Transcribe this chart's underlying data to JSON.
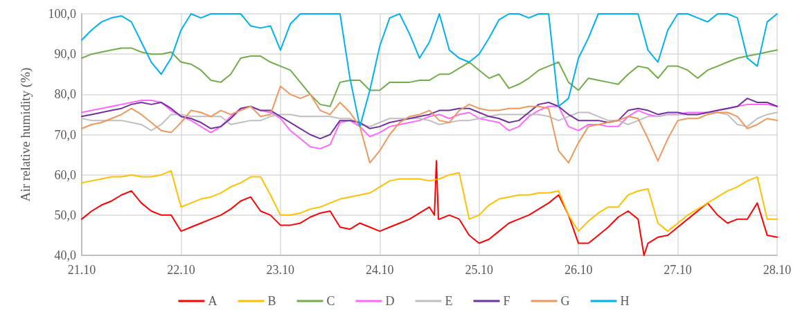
{
  "chart_data": {
    "type": "line",
    "ylabel": "Air relative humidity (%)",
    "xlim": [
      "--10-21",
      "--10-28"
    ],
    "xticks": [
      {
        "value": "--10-21",
        "label": "21.10"
      },
      {
        "value": "--10-22",
        "label": "22.10"
      },
      {
        "value": "--10-23",
        "label": "23.10"
      },
      {
        "value": "--10-24",
        "label": "24.10"
      },
      {
        "value": "--10-25",
        "label": "25.10"
      },
      {
        "value": "--10-26",
        "label": "26.10"
      },
      {
        "value": "--10-27",
        "label": "27.10"
      },
      {
        "value": "--10-28",
        "label": "28.10"
      }
    ],
    "ylim": [
      40,
      100
    ],
    "yticks": [
      {
        "value": 40,
        "label": "40,0"
      },
      {
        "value": 50,
        "label": "50,0"
      },
      {
        "value": 60,
        "label": "60,0"
      },
      {
        "value": 70,
        "label": "70,0"
      },
      {
        "value": 80,
        "label": "80,0"
      },
      {
        "value": 90,
        "label": "90,0"
      },
      {
        "value": 100,
        "label": "100,0"
      }
    ],
    "grid": true,
    "legend": "bottom",
    "marker": "none",
    "line_style": "solid",
    "x": [
      "--10-21T00:00",
      "--10-21T02:24",
      "--10-21T04:48",
      "--10-21T07:12",
      "--10-21T09:36",
      "--10-21T12:00",
      "--10-21T14:24",
      "--10-21T16:48",
      "--10-21T19:12",
      "--10-21T21:36",
      "--10-22T00:00",
      "--10-22T02:24",
      "--10-22T04:48",
      "--10-22T07:12",
      "--10-22T09:36",
      "--10-22T12:00",
      "--10-22T14:24",
      "--10-22T16:48",
      "--10-22T19:12",
      "--10-22T21:36",
      "--10-23T00:00",
      "--10-23T02:24",
      "--10-23T04:48",
      "--10-23T07:12",
      "--10-23T09:36",
      "--10-23T12:00",
      "--10-23T14:24",
      "--10-23T16:48",
      "--10-23T19:12",
      "--10-23T21:36",
      "--10-24T00:00",
      "--10-24T02:24",
      "--10-24T04:48",
      "--10-24T07:12",
      "--10-24T09:36",
      "--10-24T12:00",
      "--10-24T14:24",
      "--10-24T16:48",
      "--10-24T19:12",
      "--10-24T21:36",
      "--10-25T00:00",
      "--10-25T02:24",
      "--10-25T04:48",
      "--10-25T07:12",
      "--10-25T09:36",
      "--10-25T12:00",
      "--10-25T14:24",
      "--10-25T16:48",
      "--10-25T19:12",
      "--10-25T21:36",
      "--10-26T00:00",
      "--10-26T02:24",
      "--10-26T04:48",
      "--10-26T07:12",
      "--10-26T09:36",
      "--10-26T12:00",
      "--10-26T14:24",
      "--10-26T16:48",
      "--10-26T19:12",
      "--10-26T21:36",
      "--10-27T00:00",
      "--10-27T02:24",
      "--10-27T04:48",
      "--10-27T07:12",
      "--10-27T09:36",
      "--10-27T12:00",
      "--10-27T14:24",
      "--10-27T16:48",
      "--10-27T19:12",
      "--10-27T21:36",
      "--10-28T00:00"
    ],
    "series": [
      {
        "name": "A",
        "color": "#ff0000",
        "x": [
          "--10-21T00:00",
          "--10-21T02:24",
          "--10-21T04:48",
          "--10-21T07:12",
          "--10-21T09:36",
          "--10-21T12:00",
          "--10-21T14:24",
          "--10-21T16:48",
          "--10-21T19:12",
          "--10-21T21:36",
          "--10-22T00:00",
          "--10-22T02:24",
          "--10-22T04:48",
          "--10-22T07:12",
          "--10-22T09:36",
          "--10-22T12:00",
          "--10-22T14:24",
          "--10-22T16:48",
          "--10-22T19:12",
          "--10-22T21:36",
          "--10-23T00:00",
          "--10-23T02:24",
          "--10-23T04:48",
          "--10-23T07:12",
          "--10-23T09:36",
          "--10-23T12:00",
          "--10-23T14:24",
          "--10-23T16:48",
          "--10-23T19:12",
          "--10-23T21:36",
          "--10-24T00:00",
          "--10-24T02:24",
          "--10-24T04:48",
          "--10-24T07:12",
          "--10-24T09:36",
          "--10-24T12:00",
          "--10-24T13:12",
          "--10-24T13:41",
          "--10-24T14:10",
          "--10-24T14:24",
          "--10-24T16:48",
          "--10-24T19:12",
          "--10-24T21:36",
          "--10-25T00:00",
          "--10-25T02:24",
          "--10-25T04:48",
          "--10-25T07:12",
          "--10-25T09:36",
          "--10-25T12:00",
          "--10-25T14:24",
          "--10-25T16:48",
          "--10-25T19:12",
          "--10-25T21:36",
          "--10-26T00:00",
          "--10-26T02:24",
          "--10-26T04:48",
          "--10-26T07:12",
          "--10-26T09:36",
          "--10-26T12:00",
          "--10-26T14:24",
          "--10-26T15:50",
          "--10-26T16:48",
          "--10-26T19:12",
          "--10-26T21:36",
          "--10-27T00:00",
          "--10-27T02:24",
          "--10-27T04:48",
          "--10-27T07:12",
          "--10-27T09:36",
          "--10-27T12:00",
          "--10-27T14:24",
          "--10-27T16:48",
          "--10-27T19:12",
          "--10-27T21:36",
          "--10-28T00:00"
        ],
        "values": [
          49,
          51,
          52.5,
          53.5,
          55,
          56,
          53,
          51,
          50,
          50,
          46,
          47,
          48,
          49,
          50,
          51.5,
          53.5,
          54.5,
          51,
          50,
          47.5,
          47.5,
          48,
          49.5,
          50.5,
          51,
          47,
          46.5,
          48,
          47,
          46,
          47,
          48,
          49,
          50.5,
          52,
          50,
          63.5,
          49,
          49,
          50,
          49,
          45,
          43,
          44,
          46,
          48,
          49,
          50,
          51.5,
          53,
          55,
          50,
          43,
          43,
          45,
          47,
          49.5,
          51,
          49,
          40,
          43,
          44.5,
          45,
          47,
          49,
          51,
          53,
          50,
          48,
          49,
          49,
          53,
          45,
          44.5
        ]
      },
      {
        "name": "B",
        "color": "#ffc000",
        "values": [
          58,
          58.5,
          59,
          59.5,
          59.5,
          60,
          59.5,
          59.5,
          60,
          61,
          52,
          53,
          54,
          54.5,
          55.5,
          57,
          58,
          59.5,
          59.5,
          55,
          50,
          50,
          50.5,
          51.5,
          52,
          53,
          54,
          54.5,
          55,
          55.5,
          57,
          58.5,
          59,
          59,
          59,
          58.5,
          59,
          60,
          60.5,
          49,
          50,
          52.5,
          54,
          54.5,
          55,
          55,
          55.5,
          55.5,
          56,
          50,
          46,
          48.5,
          50.5,
          52,
          52,
          55,
          56,
          56.5,
          48,
          46,
          48,
          50,
          51.5,
          53,
          54.5,
          56,
          57,
          58.5,
          59.5,
          49,
          49
        ]
      },
      {
        "name": "C",
        "color": "#70ad47",
        "values": [
          89,
          90,
          90.5,
          91,
          91.5,
          91.5,
          90.5,
          90,
          90,
          90.5,
          88,
          87.5,
          86,
          83.5,
          83,
          85,
          89,
          89.5,
          89.5,
          88,
          87,
          86,
          83,
          80,
          77.5,
          77,
          83,
          83.5,
          83.5,
          81,
          81,
          83,
          83,
          83,
          83.5,
          83.5,
          85,
          85,
          86.5,
          88,
          86,
          84,
          85,
          81.5,
          82.5,
          84,
          86,
          87,
          88,
          83,
          81,
          84,
          83.5,
          83,
          82.5,
          85,
          87,
          86.5,
          84,
          87,
          87,
          86,
          84,
          86,
          87,
          88,
          89,
          89.5,
          90,
          90.5,
          91
        ]
      },
      {
        "name": "D",
        "color": "#ff66ff",
        "values": [
          75.5,
          76,
          76.5,
          77,
          77.5,
          78,
          78.5,
          78.5,
          78,
          76,
          74.5,
          73.5,
          72,
          70.5,
          72,
          74.5,
          76.5,
          77,
          76,
          75.5,
          74,
          71,
          69,
          67,
          66.5,
          67.5,
          73,
          73.5,
          72,
          69.5,
          70.5,
          72,
          72.5,
          73,
          73.5,
          74.5,
          75,
          74,
          75,
          75.5,
          74,
          73.5,
          73,
          71,
          72,
          74.5,
          76,
          77,
          77,
          72,
          71,
          72.5,
          72.5,
          72,
          72,
          74.5,
          76,
          75,
          74.5,
          75,
          75,
          75.5,
          75.5,
          75.5,
          76,
          76.5,
          77,
          77.5,
          77.5,
          77.5,
          77
        ]
      },
      {
        "name": "E",
        "color": "#bfbfbf",
        "values": [
          74,
          73.5,
          73.5,
          73.5,
          73.5,
          73,
          72.5,
          71,
          72.5,
          75,
          75,
          74.5,
          74.5,
          74.5,
          74.5,
          72.5,
          73,
          73.5,
          73.5,
          74.5,
          75,
          75,
          74.5,
          74.5,
          74.5,
          74.5,
          74,
          74,
          72.5,
          72,
          73,
          74,
          74,
          74,
          74,
          73.5,
          72.5,
          73,
          73.5,
          73.5,
          74,
          74.5,
          75,
          75,
          75,
          75,
          75,
          74.5,
          73.5,
          74.5,
          75.5,
          75.5,
          74.5,
          73.5,
          73.5,
          72.5,
          73.5,
          74.5,
          74.5,
          75,
          75,
          75,
          75,
          75.5,
          75.5,
          75,
          72.5,
          72,
          74,
          75,
          75.5
        ]
      },
      {
        "name": "F",
        "color": "#7030a0",
        "values": [
          74.5,
          75,
          75.5,
          76,
          76.5,
          77.5,
          78,
          77.5,
          78,
          76.5,
          74.5,
          74,
          73,
          71.5,
          72,
          74,
          76.5,
          77,
          76,
          76,
          74.5,
          73,
          71.5,
          70,
          69,
          70,
          73.5,
          73.5,
          73,
          71.5,
          72,
          73,
          73.5,
          74,
          74.5,
          75,
          76,
          76,
          76.5,
          76.5,
          75.5,
          74.5,
          74,
          73,
          73.5,
          75.5,
          77.5,
          78,
          77,
          75,
          73.5,
          73.5,
          73.5,
          73,
          73.5,
          76,
          76.5,
          76,
          75,
          75.5,
          75.5,
          75,
          75,
          75.5,
          76,
          76.5,
          77,
          79,
          78,
          78,
          77
        ]
      },
      {
        "name": "G",
        "color": "#f0965a",
        "values": [
          71.5,
          72.5,
          73,
          74,
          75,
          76.5,
          75,
          73,
          71,
          70.5,
          73,
          76,
          75.5,
          74.5,
          76,
          75,
          76,
          77,
          74.5,
          75,
          82,
          80,
          79,
          80,
          76,
          75,
          78,
          75.5,
          72,
          63,
          66,
          70,
          73,
          74.5,
          75,
          76,
          73.5,
          73,
          76,
          77.5,
          76.5,
          76,
          76,
          76.5,
          76.5,
          77,
          77,
          76.5,
          66,
          63,
          68,
          72,
          72.5,
          73,
          73.5,
          74.5,
          74,
          69,
          63.5,
          69,
          73.5,
          74,
          74,
          75,
          75.5,
          75.5,
          74.5,
          71.5,
          72.5,
          74,
          73.5
        ]
      },
      {
        "name": "H",
        "color": "#00b0f0",
        "values": [
          93.5,
          96,
          98,
          99,
          99.5,
          98,
          93,
          88,
          85,
          89,
          96,
          100,
          99,
          100,
          100,
          100,
          100,
          97,
          96.5,
          97,
          91,
          97.5,
          100,
          100,
          100,
          100,
          100,
          84,
          72,
          81,
          92,
          99,
          100,
          95,
          89,
          93,
          100,
          91,
          89,
          88,
          90,
          94,
          98.5,
          100,
          100,
          99,
          100,
          100,
          77,
          79,
          89,
          94,
          100,
          100,
          100,
          100,
          100,
          91,
          88,
          96,
          100,
          100,
          99,
          98,
          100,
          100,
          99,
          89,
          87,
          98,
          100
        ]
      }
    ]
  }
}
